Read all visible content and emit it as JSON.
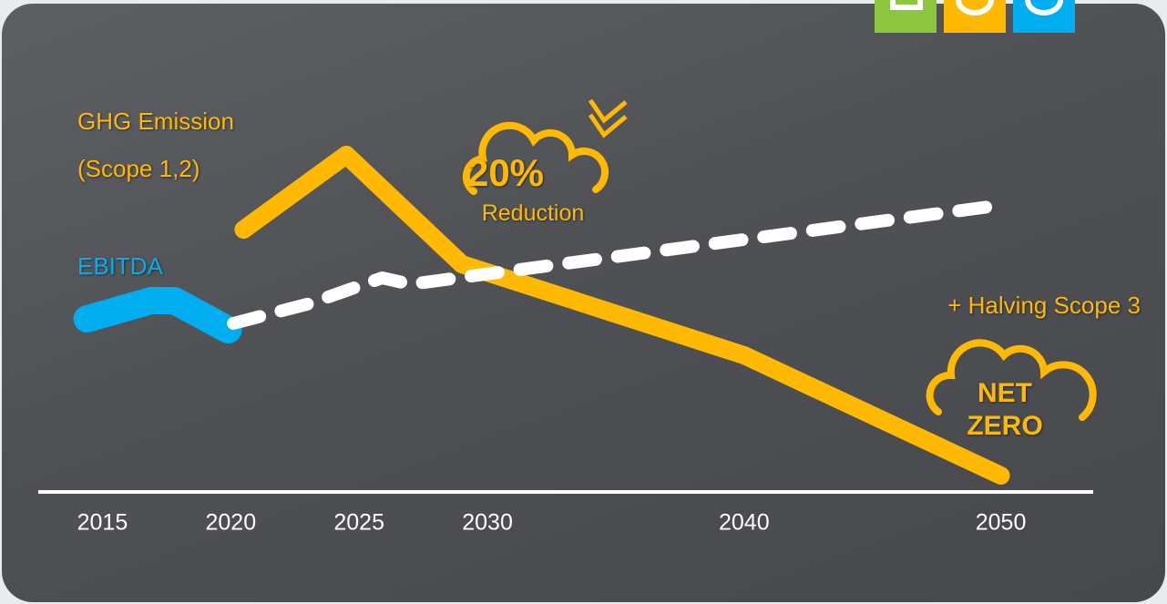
{
  "chart_data": {
    "type": "line",
    "xlim": [
      2012.5,
      2053.6
    ],
    "xticks": [
      2015,
      2020,
      2025,
      2030,
      2040,
      2050
    ],
    "ylim": [
      0,
      100
    ],
    "series": [
      {
        "name": "GHG Emission (Scope 1,2)",
        "color": "#ffb900",
        "x": [
          2020.5,
          2024.5,
          2029,
          2040,
          2050
        ],
        "values": [
          72,
          92.5,
          62.5,
          37.5,
          4.5
        ]
      },
      {
        "name": "EBITDA",
        "color": "#00aeef",
        "x": [
          2014.4,
          2016.9,
          2017.8,
          2019.9
        ],
        "values": [
          47.5,
          52.5,
          52.5,
          44.5
        ]
      },
      {
        "color": "#ffffff",
        "style": "dashed",
        "x": [
          2020.1,
          2023.1,
          2025.9,
          2027,
          2050.05
        ],
        "values": [
          46.25,
          51.75,
          58.75,
          57,
          78.75
        ]
      }
    ],
    "annotations": [
      "20%",
      "Reduction",
      "+ Halving Scope 3",
      "NET ZERO"
    ]
  }
}
